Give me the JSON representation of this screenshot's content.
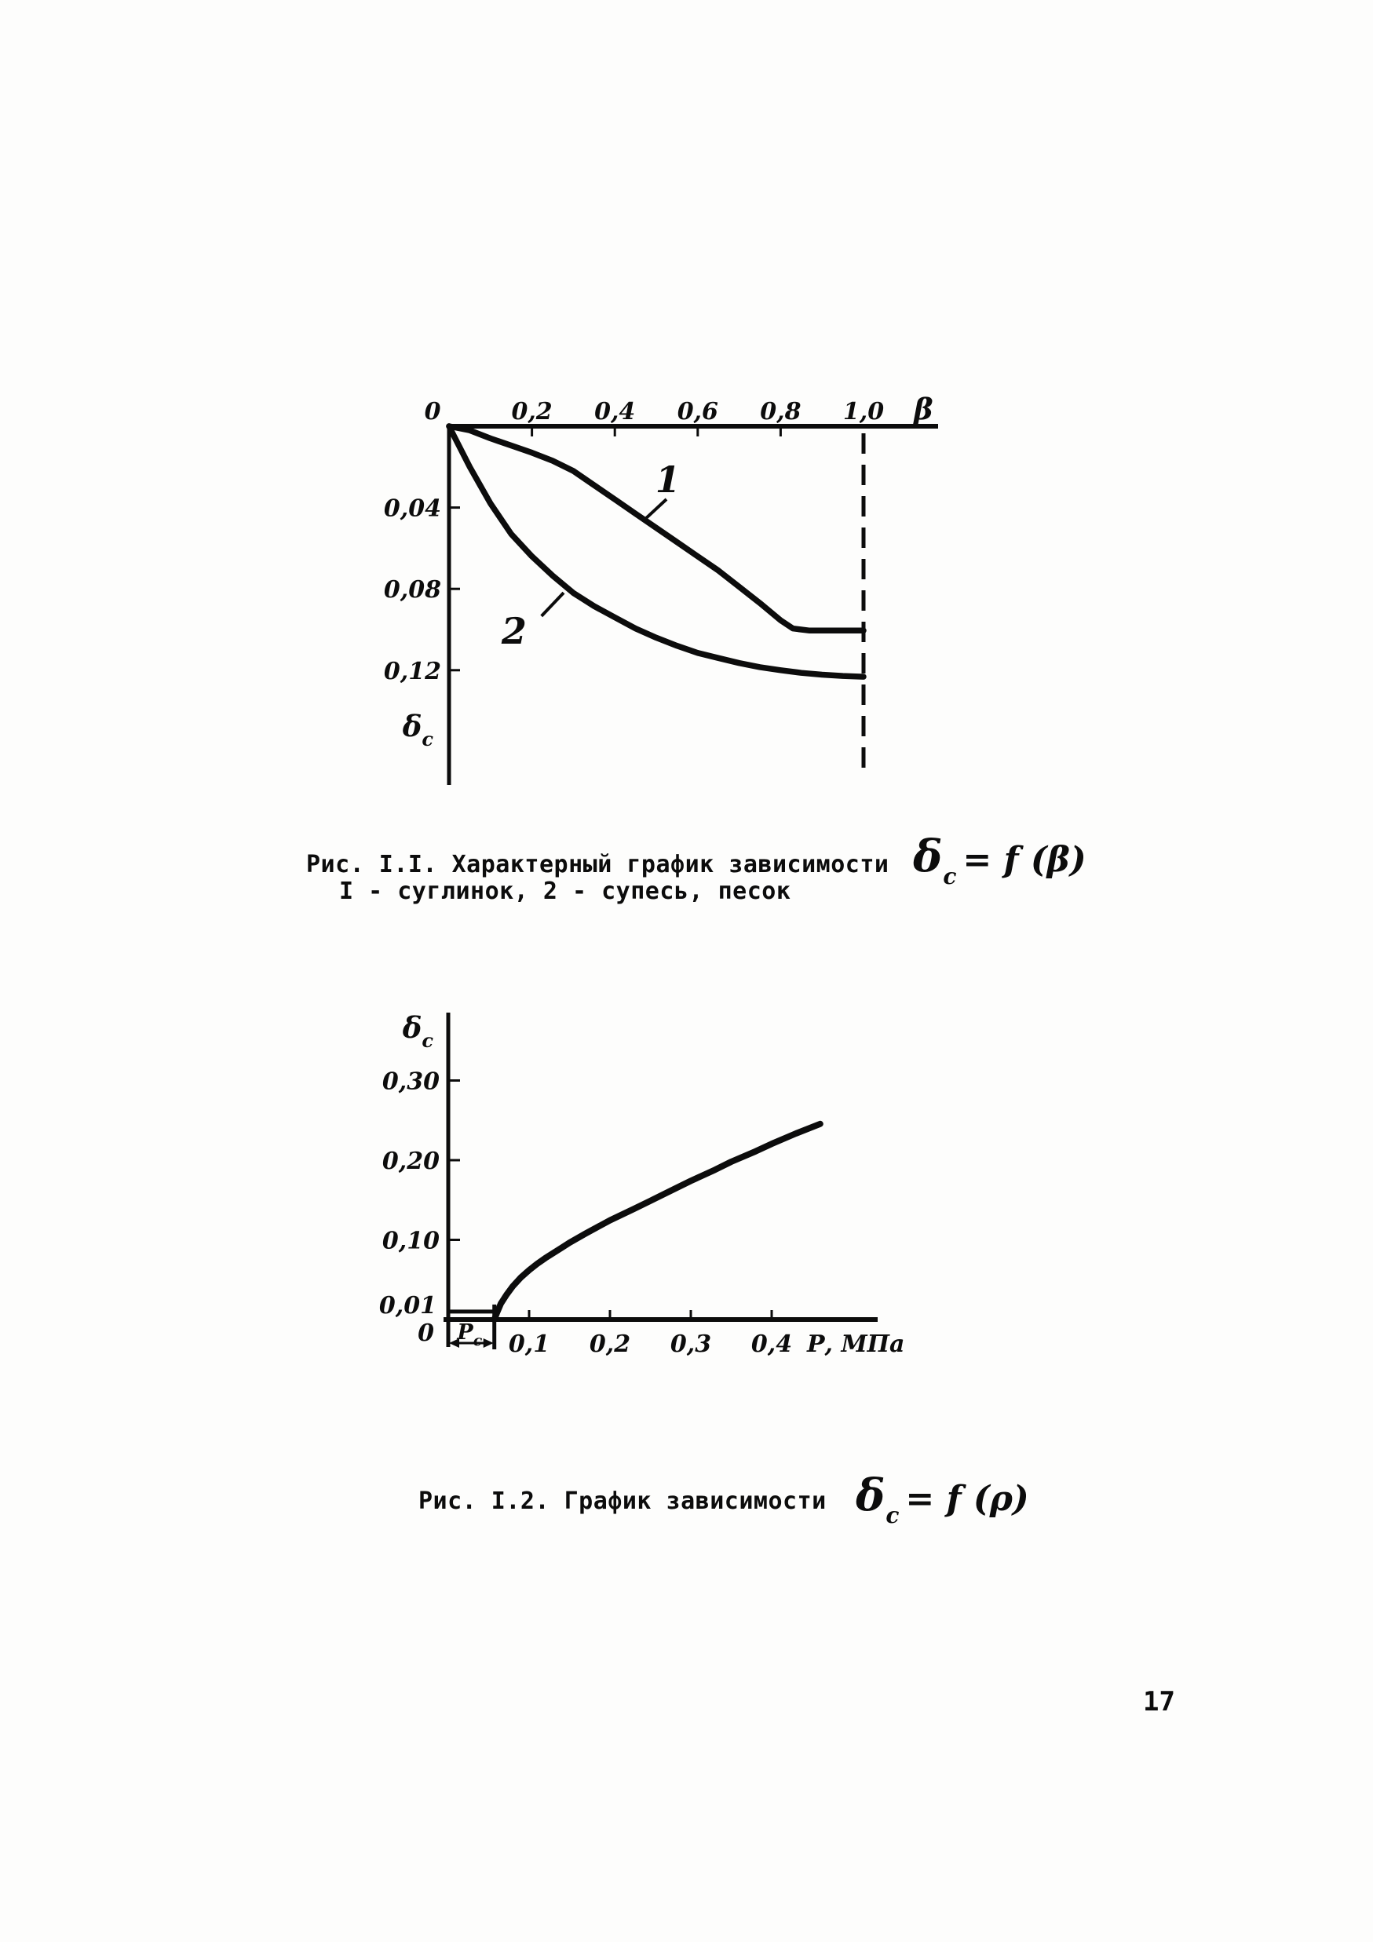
{
  "page": {
    "number": "17"
  },
  "figure1": {
    "caption_line1": "Рис. I.I. Характерный график зависимости",
    "caption_line2": "I - суглинок, 2 - супесь, песок",
    "formula": {
      "base": "δ",
      "sub": "c",
      "rest": "= f (β)"
    }
  },
  "figure2": {
    "caption_line1": "Рис. I.2. График зависимости",
    "formula": {
      "base": "δ",
      "sub": "c",
      "rest": "= f (ρ)"
    }
  },
  "chart_data": [
    {
      "type": "line",
      "title": "Рис. I.I. Характерный график зависимости δc = f(β)",
      "xlabel": "β",
      "ylabel": {
        "base": "δ",
        "sub": "c"
      },
      "xlim": [
        0,
        1.0
      ],
      "ylim": [
        0,
        0.16
      ],
      "y_axis_direction": "down",
      "grid": false,
      "x_ticks": [
        {
          "v": 0,
          "label": "0"
        },
        {
          "v": 0.2,
          "label": "0,2"
        },
        {
          "v": 0.4,
          "label": "0,4"
        },
        {
          "v": 0.6,
          "label": "0,6"
        },
        {
          "v": 0.8,
          "label": "0,8"
        },
        {
          "v": 1.0,
          "label": "1,0"
        }
      ],
      "y_ticks": [
        {
          "v": 0.04,
          "label": "0,04"
        },
        {
          "v": 0.08,
          "label": "0,08"
        },
        {
          "v": 0.12,
          "label": "0,12"
        }
      ],
      "dashed_vline_x": 1.0,
      "series": [
        {
          "name": "1",
          "meaning": "суглинок",
          "points": [
            [
              0,
              0
            ],
            [
              0.05,
              0.002
            ],
            [
              0.1,
              0.006
            ],
            [
              0.15,
              0.0095
            ],
            [
              0.2,
              0.013
            ],
            [
              0.25,
              0.017
            ],
            [
              0.3,
              0.022
            ],
            [
              0.35,
              0.029
            ],
            [
              0.4,
              0.036
            ],
            [
              0.45,
              0.043
            ],
            [
              0.5,
              0.05
            ],
            [
              0.55,
              0.057
            ],
            [
              0.6,
              0.064
            ],
            [
              0.65,
              0.071
            ],
            [
              0.7,
              0.079
            ],
            [
              0.75,
              0.087
            ],
            [
              0.8,
              0.0955
            ],
            [
              0.83,
              0.0995
            ],
            [
              0.87,
              0.1005
            ],
            [
              1.0,
              0.1005
            ]
          ],
          "label_pos": {
            "x": 0.528,
            "y": 0.0325
          },
          "leader": [
            [
              0.4697,
              0.0463
            ],
            [
              0.5246,
              0.0359
            ]
          ]
        },
        {
          "name": "2",
          "meaning": "супесь, песок",
          "points": [
            [
              0,
              0
            ],
            [
              0.025,
              0.01
            ],
            [
              0.05,
              0.02
            ],
            [
              0.075,
              0.029
            ],
            [
              0.1,
              0.038
            ],
            [
              0.15,
              0.053
            ],
            [
              0.2,
              0.064
            ],
            [
              0.25,
              0.0735
            ],
            [
              0.3,
              0.082
            ],
            [
              0.35,
              0.0885
            ],
            [
              0.4,
              0.094
            ],
            [
              0.45,
              0.0995
            ],
            [
              0.5,
              0.104
            ],
            [
              0.55,
              0.108
            ],
            [
              0.6,
              0.1115
            ],
            [
              0.65,
              0.114
            ],
            [
              0.7,
              0.1165
            ],
            [
              0.75,
              0.1185
            ],
            [
              0.8,
              0.12
            ],
            [
              0.85,
              0.1213
            ],
            [
              0.9,
              0.1222
            ],
            [
              0.95,
              0.1228
            ],
            [
              1.0,
              0.1232
            ]
          ],
          "label_pos": {
            "x": 0.157,
            "y": 0.107
          },
          "leader": [
            [
              0.223,
              0.0934
            ],
            [
              0.2765,
              0.0819
            ]
          ]
        }
      ]
    },
    {
      "type": "line",
      "title": "Рис. I.2. График зависимости δc = f(ρ)",
      "xlabel": "Р, МПа",
      "ylabel": {
        "base": "δ",
        "sub": "c"
      },
      "xlim": [
        0,
        0.5
      ],
      "ylim": [
        0,
        0.34
      ],
      "y_axis_direction": "up",
      "grid": false,
      "x_ticks": [
        {
          "v": 0.1,
          "label": "0,1"
        },
        {
          "v": 0.2,
          "label": "0,2"
        },
        {
          "v": 0.3,
          "label": "0,3"
        },
        {
          "v": 0.4,
          "label": "0,4"
        }
      ],
      "y_ticks": [
        {
          "v": 0.1,
          "label": "0,10"
        },
        {
          "v": 0.2,
          "label": "0,20"
        },
        {
          "v": 0.3,
          "label": "0,30"
        }
      ],
      "origin_label": "0",
      "y_threshold": {
        "v": 0.01,
        "label": "0,01",
        "extent_x": 0.057
      },
      "pc_bracket": {
        "label": {
          "base": "Р",
          "sub": "с"
        },
        "from_x": 0,
        "to_x": 0.057
      },
      "series": [
        {
          "name": "δc(P)",
          "points": [
            [
              0.057,
              0.0
            ],
            [
              0.06,
              0.008
            ],
            [
              0.065,
              0.02
            ],
            [
              0.072,
              0.031
            ],
            [
              0.08,
              0.042
            ],
            [
              0.09,
              0.053
            ],
            [
              0.1,
              0.062
            ],
            [
              0.11,
              0.07
            ],
            [
              0.12,
              0.077
            ],
            [
              0.14,
              0.09
            ],
            [
              0.15,
              0.0965
            ],
            [
              0.17,
              0.108
            ],
            [
              0.2,
              0.1245
            ],
            [
              0.23,
              0.139
            ],
            [
              0.25,
              0.149
            ],
            [
              0.28,
              0.164
            ],
            [
              0.3,
              0.174
            ],
            [
              0.33,
              0.188
            ],
            [
              0.35,
              0.198
            ],
            [
              0.38,
              0.211
            ],
            [
              0.4,
              0.2205
            ],
            [
              0.43,
              0.2335
            ],
            [
              0.46,
              0.2455
            ]
          ]
        }
      ]
    }
  ]
}
